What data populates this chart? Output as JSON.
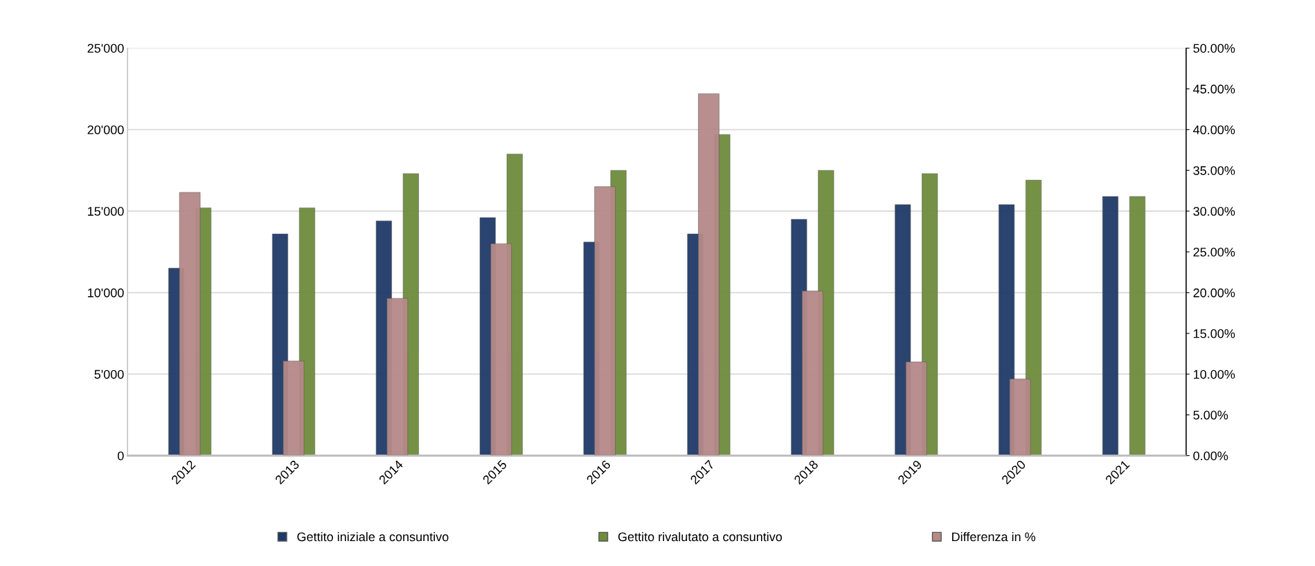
{
  "chart_data": {
    "type": "bar",
    "categories": [
      "2012",
      "2013",
      "2014",
      "2015",
      "2016",
      "2017",
      "2018",
      "2019",
      "2020",
      "2021"
    ],
    "series": [
      {
        "name": "Gettito iniziale a consuntivo",
        "color": "#1f3a68",
        "values": [
          11500,
          13600,
          14400,
          14600,
          13100,
          13600,
          14500,
          15400,
          15400,
          15900
        ]
      },
      {
        "name": "Gettito rivalutato a consuntivo",
        "color": "#6e8c3c",
        "values": [
          15200,
          15200,
          17300,
          18500,
          17500,
          19700,
          17500,
          17300,
          16900,
          15900
        ]
      },
      {
        "name": "Differenza in %",
        "color": "#b58a88",
        "axis": "y2",
        "values": [
          32.3,
          11.6,
          19.3,
          26.0,
          33.0,
          44.4,
          20.2,
          11.5,
          9.4,
          null
        ]
      }
    ],
    "ylim": [
      0,
      25000
    ],
    "yticks": [
      {
        "value": 0,
        "label": "0"
      },
      {
        "value": 5000,
        "label": "5'000"
      },
      {
        "value": 10000,
        "label": "10'000"
      },
      {
        "value": 15000,
        "label": "15'000"
      },
      {
        "value": 20000,
        "label": "20'000"
      },
      {
        "value": 25000,
        "label": "25'000"
      }
    ],
    "y2lim": [
      0,
      50
    ],
    "y2ticks": [
      {
        "value": 0,
        "label": "0.00%"
      },
      {
        "value": 5,
        "label": "5.00%"
      },
      {
        "value": 10,
        "label": "10.00%"
      },
      {
        "value": 15,
        "label": "15.00%"
      },
      {
        "value": 20,
        "label": "20.00%"
      },
      {
        "value": 25,
        "label": "25.00%"
      },
      {
        "value": 30,
        "label": "30.00%"
      },
      {
        "value": 35,
        "label": "35.00%"
      },
      {
        "value": 40,
        "label": "40.00%"
      },
      {
        "value": 45,
        "label": "45.00%"
      },
      {
        "value": 50,
        "label": "50.00%"
      }
    ],
    "grid": "y",
    "legend": "bottom"
  }
}
